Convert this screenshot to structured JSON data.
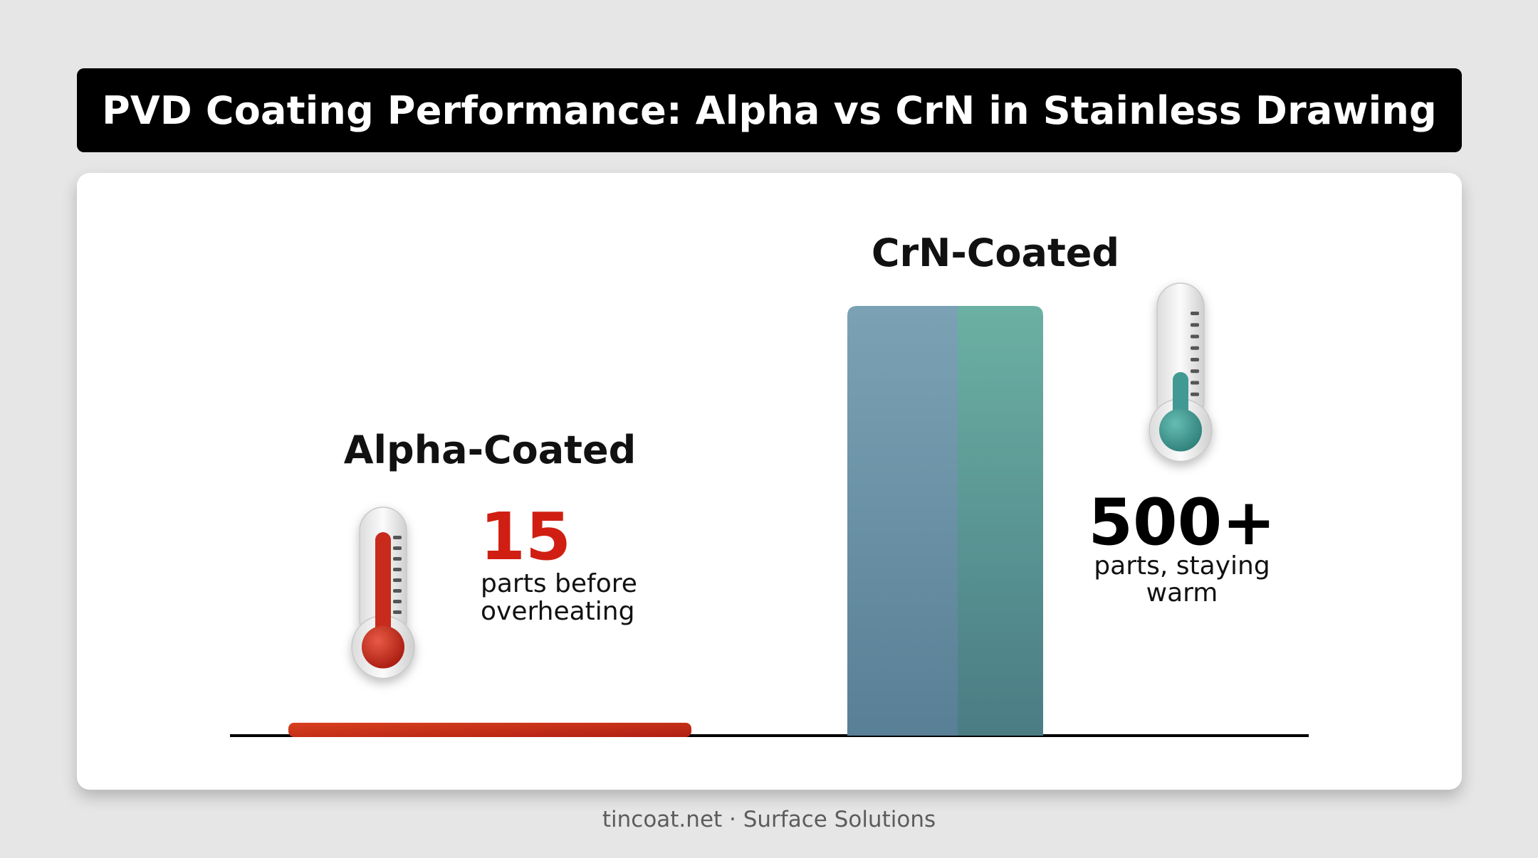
{
  "title": "PVD Coating Performance: Alpha vs CrN in Stainless Drawing",
  "footer": "tincoat.net · Surface Solutions",
  "colors": {
    "alpha_bar": "#c42a14",
    "crn_bar_left": "#6c92a6",
    "crn_bar_right": "#5a9c94",
    "alpha_value": "#d01f12",
    "crn_value": "#000000",
    "thermo_hot": "#c8291a",
    "thermo_cool": "#3f9a93"
  },
  "chart_data": {
    "type": "bar",
    "categories": [
      "Alpha-Coated",
      "CrN-Coated"
    ],
    "values": [
      15,
      500
    ],
    "ylim": [
      0,
      500
    ],
    "grid": false,
    "annotations": [
      {
        "category": "Alpha-Coated",
        "value_text": "15",
        "caption_lines": [
          "parts before",
          "overheating"
        ],
        "icon": "thermometer-hot-icon"
      },
      {
        "category": "CrN-Coated",
        "value_text": "500+",
        "caption_lines": [
          "parts, staying",
          "warm"
        ],
        "icon": "thermometer-cool-icon"
      }
    ]
  }
}
